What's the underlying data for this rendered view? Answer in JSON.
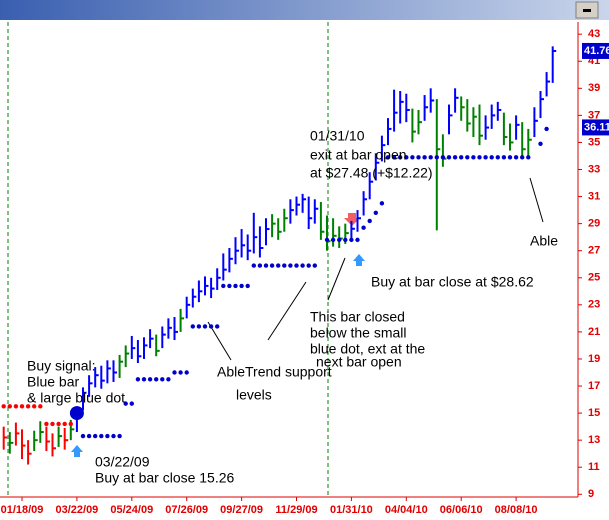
{
  "chart_data": {
    "type": "ohlc",
    "categories": [
      null,
      null,
      null,
      "01/18/09",
      null,
      null,
      null,
      null,
      null,
      null,
      null,
      null,
      "03/22/09",
      null,
      null,
      null,
      null,
      null,
      null,
      null,
      null,
      "05/24/09",
      null,
      null,
      null,
      null,
      null,
      null,
      null,
      null,
      "07/26/09",
      null,
      null,
      null,
      null,
      null,
      null,
      null,
      null,
      "09/27/09",
      null,
      null,
      null,
      null,
      null,
      null,
      null,
      null,
      "11/29/09",
      null,
      null,
      null,
      null,
      null,
      null,
      null,
      null,
      "01/31/10",
      null,
      null,
      null,
      null,
      null,
      null,
      null,
      null,
      "04/04/10",
      null,
      null,
      null,
      null,
      null,
      null,
      null,
      null,
      "06/06/10",
      null,
      null,
      null,
      null,
      null,
      null,
      null,
      null,
      "08/08/10",
      null,
      null,
      null,
      null,
      null,
      null
    ],
    "high": [
      14.0,
      13.6,
      14.3,
      13.8,
      13.0,
      13.7,
      14.4,
      14.0,
      13.5,
      14.0,
      13.9,
      14.5,
      15.5,
      16.9,
      17.8,
      18.4,
      18.5,
      18.9,
      18.9,
      19.3,
      20.0,
      20.7,
      20.4,
      20.6,
      21.2,
      20.8,
      21.4,
      22.0,
      22.1,
      22.7,
      23.6,
      24.2,
      24.8,
      25.1,
      25.0,
      25.7,
      26.8,
      27.2,
      28.0,
      28.6,
      28.2,
      29.8,
      28.8,
      29.4,
      29.7,
      29.4,
      30.1,
      30.8,
      31.0,
      31.2,
      31.0,
      30.8,
      30.6,
      29.6,
      29.4,
      28.8,
      29.0,
      29.2,
      30.0,
      31.4,
      32.8,
      34.2,
      35.5,
      36.8,
      38.9,
      38.8,
      38.6,
      37.5,
      37.4,
      38.5,
      39.0,
      38.2,
      35.6,
      37.8,
      39.0,
      38.4,
      38.2,
      37.6,
      37.8,
      37.0,
      37.8,
      38.0,
      37.2,
      36.4,
      37.0,
      36.5,
      36.0,
      37.6,
      38.8,
      40.2,
      42.1
    ],
    "low": [
      12.3,
      12.0,
      12.6,
      11.6,
      11.2,
      12.2,
      12.8,
      12.2,
      11.8,
      12.5,
      12.3,
      13.0,
      13.6,
      15.2,
      16.2,
      16.9,
      16.8,
      17.2,
      17.3,
      17.6,
      18.4,
      19.0,
      18.7,
      19.0,
      19.8,
      19.2,
      19.8,
      20.5,
      20.4,
      21.0,
      22.0,
      22.8,
      23.2,
      23.7,
      23.5,
      24.1,
      24.8,
      25.4,
      26.0,
      26.5,
      26.3,
      26.8,
      26.5,
      27.4,
      28.0,
      27.8,
      28.4,
      29.0,
      29.6,
      29.8,
      28.6,
      29.0,
      27.8,
      27.0,
      27.3,
      27.2,
      27.5,
      27.9,
      28.4,
      29.6,
      30.8,
      32.2,
      33.6,
      34.8,
      35.8,
      36.4,
      36.5,
      35.0,
      35.6,
      36.6,
      37.2,
      28.5,
      33.2,
      35.6,
      37.2,
      36.6,
      35.8,
      35.4,
      34.8,
      35.2,
      36.0,
      36.6,
      34.8,
      34.4,
      35.2,
      33.9,
      34.0,
      35.4,
      36.8,
      38.4,
      39.4
    ],
    "close": [
      13.2,
      12.8,
      13.5,
      12.6,
      12.0,
      13.0,
      13.6,
      12.9,
      12.4,
      13.3,
      13.0,
      13.8,
      15.26,
      16.5,
      17.2,
      17.8,
      17.4,
      18.3,
      18.0,
      18.8,
      19.4,
      19.8,
      19.2,
      20.0,
      20.5,
      19.6,
      20.8,
      21.3,
      21.0,
      22.0,
      23.0,
      23.6,
      24.0,
      24.4,
      24.2,
      25.0,
      25.6,
      26.4,
      27.0,
      27.4,
      27.0,
      28.0,
      27.2,
      28.6,
      29.0,
      28.4,
      29.4,
      30.0,
      30.4,
      30.8,
      29.4,
      30.1,
      28.4,
      27.7,
      28.1,
      27.9,
      28.3,
      28.62,
      29.4,
      30.8,
      32.1,
      33.5,
      34.8,
      36.0,
      37.2,
      38.0,
      37.4,
      35.8,
      36.5,
      37.6,
      38.1,
      34.5,
      33.8,
      37.0,
      38.3,
      37.6,
      36.4,
      36.9,
      35.5,
      36.1,
      37.0,
      37.4,
      35.4,
      35.0,
      36.3,
      34.5,
      35.2,
      36.6,
      38.2,
      39.5,
      41.76
    ],
    "bar_colors": [
      "red",
      "green",
      "red",
      "red",
      "red",
      "green",
      "green",
      "red",
      "red",
      "green",
      "red",
      "green",
      "blue",
      "blue",
      "blue",
      "blue",
      "blue",
      "blue",
      "blue",
      "green",
      "green",
      "blue",
      "blue",
      "blue",
      "blue",
      "green",
      "blue",
      "blue",
      "blue",
      "green",
      "blue",
      "blue",
      "blue",
      "blue",
      "blue",
      "blue",
      "blue",
      "blue",
      "blue",
      "blue",
      "blue",
      "blue",
      "blue",
      "blue",
      "green",
      "green",
      "green",
      "blue",
      "blue",
      "blue",
      "blue",
      "blue",
      "green",
      "green",
      "green",
      "green",
      "green",
      "blue",
      "blue",
      "blue",
      "blue",
      "blue",
      "blue",
      "blue",
      "blue",
      "blue",
      "blue",
      "green",
      "green",
      "blue",
      "blue",
      "green",
      "green",
      "blue",
      "blue",
      "green",
      "green",
      "green",
      "green",
      "blue",
      "blue",
      "blue",
      "green",
      "green",
      "blue",
      "green",
      "green",
      "blue",
      "blue",
      "blue",
      "blue"
    ],
    "resistance": {
      "color": "red",
      "values": [
        15.5,
        15.5,
        15.5,
        15.5,
        15.5,
        15.5,
        15.5,
        14.2,
        14.2,
        14.2,
        14.2,
        14.2,
        null,
        null,
        null,
        null,
        null,
        null,
        null,
        null,
        null,
        null,
        null,
        null,
        null,
        null,
        null,
        null,
        null,
        null,
        null,
        null,
        null,
        null,
        null,
        null,
        null,
        null,
        null,
        null,
        null,
        null,
        null,
        null,
        null,
        null,
        null,
        null,
        null,
        null,
        null,
        null,
        null,
        null,
        null,
        null,
        null,
        null,
        null,
        null,
        null,
        null,
        null,
        null,
        null,
        null,
        null,
        null,
        null,
        null,
        null,
        null,
        null,
        null,
        null,
        null,
        null,
        null,
        null,
        null,
        null,
        null,
        null,
        null,
        null,
        null,
        null,
        null,
        null,
        null,
        null
      ]
    },
    "support": {
      "color": "#0000cc",
      "values": [
        null,
        null,
        null,
        null,
        null,
        null,
        null,
        null,
        null,
        null,
        null,
        null,
        15.0,
        13.3,
        13.3,
        13.3,
        13.3,
        13.3,
        13.3,
        13.3,
        15.7,
        15.7,
        17.5,
        17.5,
        17.5,
        17.5,
        17.5,
        17.5,
        18.0,
        18.0,
        18.0,
        21.4,
        21.4,
        21.4,
        21.4,
        21.4,
        24.4,
        24.4,
        24.4,
        24.4,
        24.4,
        25.9,
        25.9,
        25.9,
        25.9,
        25.9,
        25.9,
        25.9,
        25.9,
        25.9,
        25.9,
        25.9,
        null,
        27.8,
        27.8,
        27.8,
        27.8,
        27.8,
        27.8,
        28.7,
        29.2,
        29.8,
        30.5,
        33.9,
        33.9,
        33.9,
        33.9,
        33.9,
        33.9,
        33.9,
        33.9,
        33.9,
        33.9,
        33.9,
        33.9,
        33.9,
        33.9,
        33.9,
        33.9,
        33.9,
        33.9,
        33.9,
        33.9,
        33.9,
        33.9,
        33.9,
        33.9,
        null,
        34.9,
        36.0,
        null
      ]
    },
    "last_labels": [
      41.76,
      36.11
    ],
    "ylim": [
      8.8,
      43.9
    ],
    "yticks": [
      9,
      11,
      13,
      15,
      17,
      19,
      21,
      23,
      25,
      27,
      29,
      31,
      33,
      35,
      37,
      39,
      41,
      43
    ],
    "axis_color": "#e00000",
    "annotations": [
      "Buy signal:",
      "Blue bar",
      "& large blue dot",
      "03/22/09",
      "Buy at bar close 15.26",
      "AbleTrend support",
      "levels",
      "This bar closed",
      "below the small",
      "blue dot, ext at the",
      "next bar open",
      "01/31/10",
      "exit at bar open",
      "at $27.48 (+$12.22)",
      "Buy at bar close at $28.62",
      "Able"
    ]
  }
}
